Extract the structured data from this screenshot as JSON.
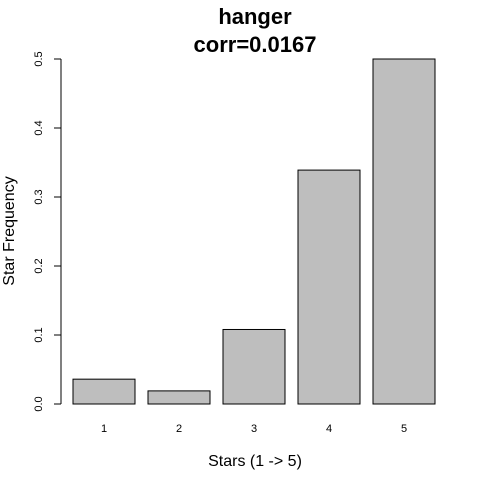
{
  "chart_data": {
    "type": "bar",
    "title_lines": [
      "hanger",
      "corr=0.0167"
    ],
    "xlabel": "Stars (1 -> 5)",
    "ylabel": "Star Frequency",
    "categories": [
      "1",
      "2",
      "3",
      "4",
      "5"
    ],
    "values": [
      0.036,
      0.019,
      0.108,
      0.339,
      0.5
    ],
    "ylim": [
      0,
      0.5
    ],
    "yticks": [
      0.0,
      0.1,
      0.2,
      0.3,
      0.4,
      0.5
    ],
    "ytick_labels": [
      "0.0",
      "0.1",
      "0.2",
      "0.3",
      "0.4",
      "0.5"
    ],
    "grid": false,
    "bar_color": "#bebebe"
  }
}
